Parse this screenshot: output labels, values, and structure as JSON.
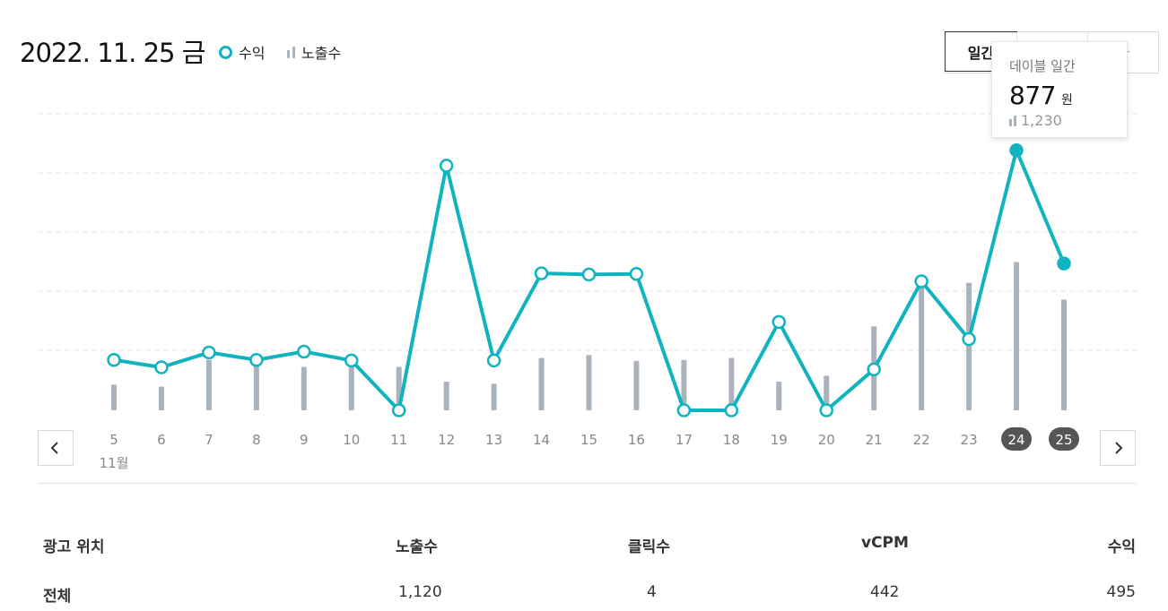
{
  "header": {
    "date": "2022. 11. 25 금"
  },
  "legend": {
    "revenue": "수익",
    "impressions": "노출수"
  },
  "period_tabs": [
    {
      "label": "일간",
      "active": true
    },
    {
      "label": "",
      "active": false
    },
    {
      "label": "간",
      "active": false
    }
  ],
  "tooltip": {
    "title": "데이블 일간",
    "value": "877",
    "unit": "원",
    "sub_value": "1,230"
  },
  "nav": {
    "prev_icon": "chevron-left-icon",
    "next_icon": "chevron-right-icon"
  },
  "colors": {
    "line": "#11b3bf",
    "bars": "#aab2bd",
    "grid": "#e6e6e6",
    "selected_badge": "#555555"
  },
  "chart_data": {
    "type": "line",
    "month_label": "11월",
    "categories": [
      "5",
      "6",
      "7",
      "8",
      "9",
      "10",
      "11",
      "12",
      "13",
      "14",
      "15",
      "16",
      "17",
      "18",
      "19",
      "20",
      "21",
      "22",
      "23",
      "24",
      "25"
    ],
    "selected": [
      "24",
      "25"
    ],
    "series": [
      {
        "name": "수익",
        "kind": "line",
        "values": [
          170,
          145,
          195,
          170,
          198,
          168,
          0,
          825,
          168,
          462,
          458,
          460,
          0,
          0,
          298,
          0,
          138,
          435,
          240,
          877,
          495
        ]
      },
      {
        "name": "노출수",
        "kind": "bar",
        "values": [
          260,
          240,
          510,
          470,
          440,
          460,
          440,
          290,
          270,
          530,
          560,
          500,
          510,
          530,
          290,
          350,
          850,
          1240,
          1290,
          1500,
          1120
        ]
      }
    ],
    "grid": true,
    "ylim_line": [
      0,
      1000
    ],
    "ylim_bars": [
      0,
      3000
    ]
  },
  "table": {
    "headers": [
      "광고 위치",
      "노출수",
      "클릭수",
      "vCPM",
      "수익"
    ],
    "rows": [
      [
        "전체",
        "1,120",
        "4",
        "442",
        "495"
      ]
    ]
  }
}
